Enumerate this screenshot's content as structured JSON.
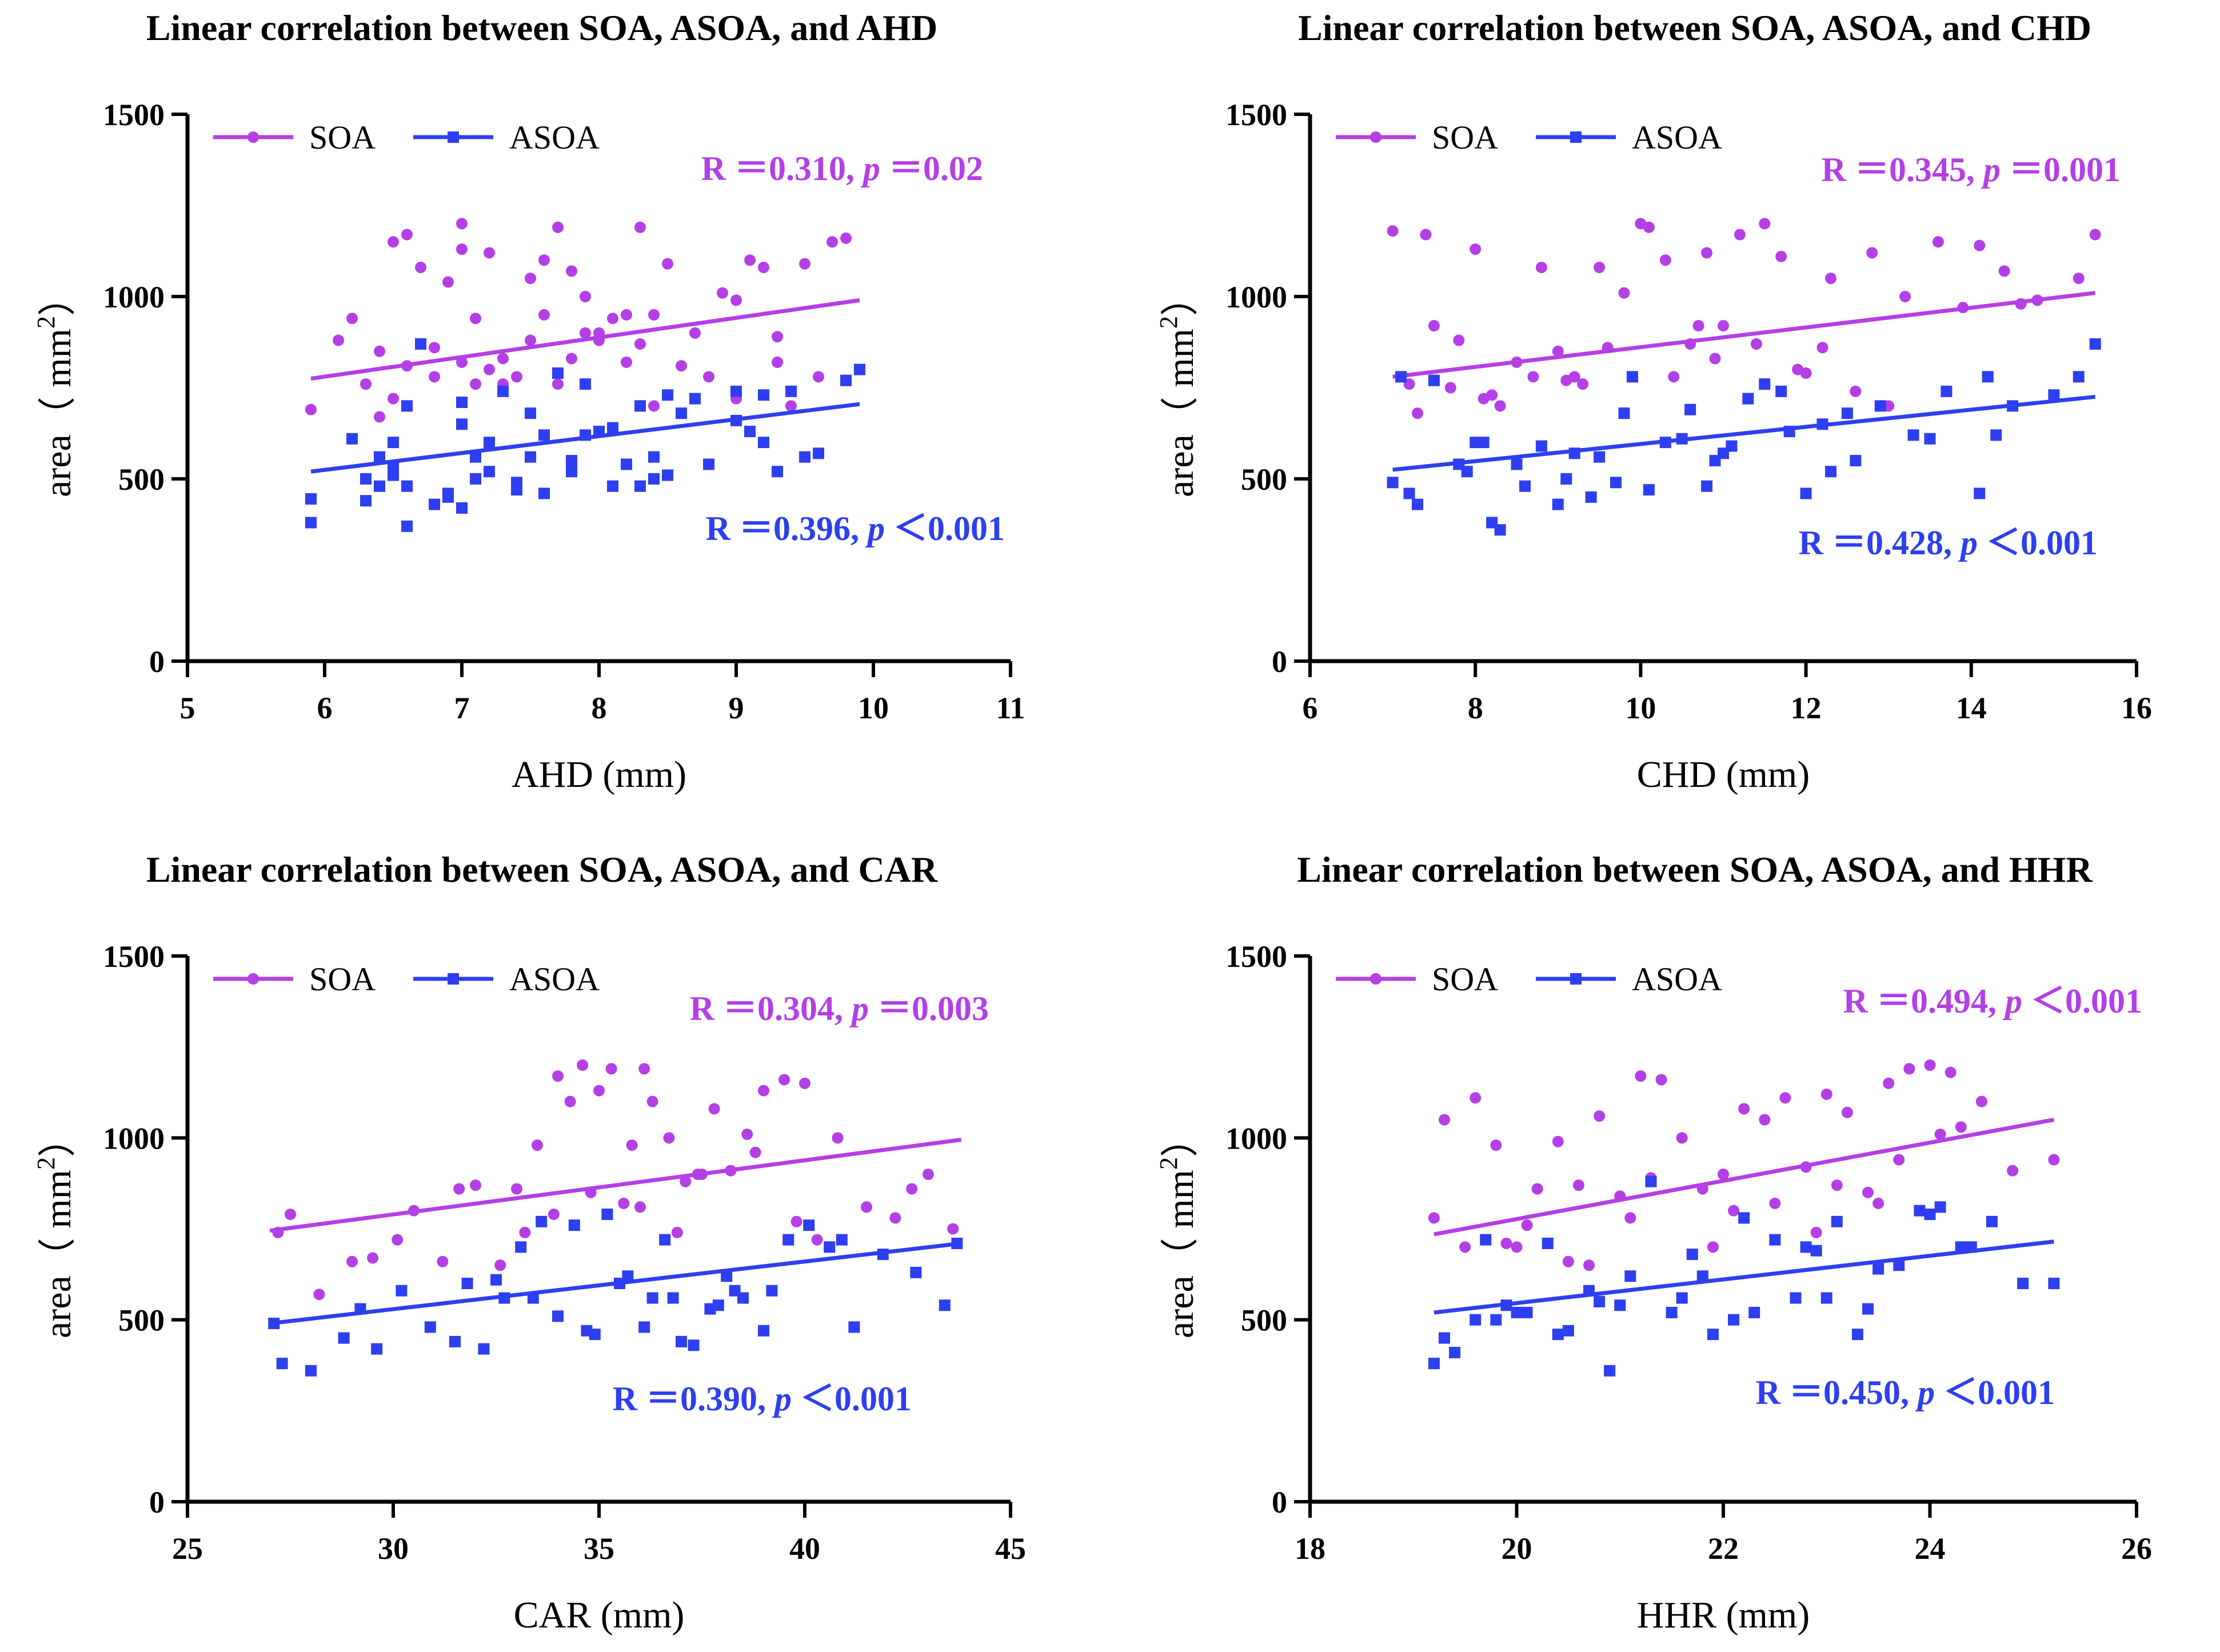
{
  "colors": {
    "soa": "#b43fe6",
    "asoa": "#2d3ff0",
    "axis": "#000000"
  },
  "chart_data": [
    {
      "type": "scatter",
      "title": "Linear correlation between SOA, ASOA, and AHD",
      "xlabel": "AHD (mm)",
      "ylabel": "area（ mm",
      "ylabel_sup": "2",
      "ylabel_close": "）",
      "xlim": [
        5,
        11
      ],
      "ylim": [
        0,
        1500
      ],
      "xticks": [
        "5",
        "6",
        "7",
        "8",
        "9",
        "10",
        "11"
      ],
      "yticks": [
        "0",
        "500",
        "1000",
        "1500"
      ],
      "legend": [
        "SOA",
        "ASOA"
      ],
      "series": [
        {
          "name": "SOA",
          "stat_r": "R ＝0.310,",
          "stat_p_sym": "p",
          "stat_p_val": "＝0.02",
          "fit": [
            [
              5.9,
              775
            ],
            [
              9.9,
              990
            ]
          ],
          "x": [
            5.9,
            6.1,
            6.3,
            6.4,
            6.5,
            6.6,
            6.7,
            6.8,
            6.9,
            7.0,
            7.0,
            7.1,
            7.2,
            7.3,
            7.4,
            7.5,
            7.6,
            7.7,
            7.8,
            7.9,
            8.0,
            8.1,
            8.2,
            8.3,
            8.4,
            8.5,
            8.7,
            8.9,
            9.0,
            9.1,
            9.2,
            9.3,
            9.5,
            9.7,
            9.8,
            6.5,
            6.8,
            7.0,
            7.3,
            7.6,
            7.8,
            8.0,
            8.3,
            8.6,
            9.0,
            9.4,
            6.2,
            6.6,
            7.1,
            7.5,
            7.9,
            8.2,
            8.8,
            9.3,
            6.4,
            7.2,
            7.7,
            8.4,
            9.6
          ],
          "y": [
            690,
            880,
            760,
            850,
            1150,
            1170,
            1080,
            860,
            1040,
            1200,
            1130,
            940,
            1120,
            830,
            780,
            1050,
            1100,
            1190,
            1070,
            1000,
            880,
            940,
            820,
            1190,
            950,
            1090,
            900,
            1010,
            990,
            1100,
            1080,
            820,
            1090,
            1150,
            1160,
            720,
            780,
            820,
            760,
            950,
            830,
            900,
            870,
            810,
            720,
            700,
            940,
            810,
            760,
            880,
            900,
            950,
            780,
            890,
            670,
            800,
            760,
            700,
            780
          ]
        },
        {
          "name": "ASOA",
          "stat_r": "R ＝0.396,",
          "stat_p_sym": "p",
          "stat_p_val": "＜0.001",
          "fit": [
            [
              5.9,
              520
            ],
            [
              9.9,
              705
            ]
          ],
          "x": [
            5.9,
            5.9,
            6.2,
            6.3,
            6.4,
            6.4,
            6.5,
            6.5,
            6.6,
            6.6,
            6.7,
            6.8,
            6.9,
            7.0,
            7.0,
            7.1,
            7.1,
            7.2,
            7.3,
            7.4,
            7.5,
            7.6,
            7.6,
            7.7,
            7.8,
            7.9,
            8.0,
            8.1,
            8.2,
            8.3,
            8.3,
            8.4,
            8.5,
            8.6,
            8.8,
            9.0,
            9.1,
            9.2,
            9.3,
            9.4,
            9.6,
            9.8,
            9.9,
            6.3,
            6.6,
            6.9,
            7.2,
            7.5,
            7.8,
            8.1,
            8.4,
            8.7,
            9.0,
            9.5,
            6.5,
            7.0,
            7.4,
            7.9,
            8.5,
            9.2
          ],
          "y": [
            445,
            380,
            610,
            440,
            480,
            560,
            530,
            600,
            370,
            480,
            870,
            430,
            460,
            710,
            420,
            560,
            500,
            520,
            740,
            490,
            560,
            460,
            620,
            790,
            550,
            760,
            630,
            480,
            540,
            700,
            480,
            500,
            730,
            680,
            540,
            740,
            630,
            600,
            520,
            740,
            570,
            770,
            800,
            500,
            700,
            450,
            600,
            680,
            520,
            640,
            560,
            720,
            660,
            560,
            510,
            650,
            470,
            620,
            510,
            730
          ]
        }
      ]
    },
    {
      "type": "scatter",
      "title": "Linear correlation between SOA, ASOA, and CHD",
      "xlabel": "CHD (mm)",
      "ylabel": "area（ mm",
      "ylabel_sup": "2",
      "ylabel_close": "）",
      "xlim": [
        6,
        16
      ],
      "ylim": [
        0,
        1500
      ],
      "xticks": [
        "6",
        "8",
        "10",
        "12",
        "14",
        "16"
      ],
      "yticks": [
        "0",
        "500",
        "1000",
        "1500"
      ],
      "legend": [
        "SOA",
        "ASOA"
      ],
      "series": [
        {
          "name": "SOA",
          "stat_r": "R ＝0.345,",
          "stat_p_sym": "p",
          "stat_p_val": "＝0.001",
          "fit": [
            [
              7.0,
              780
            ],
            [
              15.5,
              1010
            ]
          ],
          "x": [
            7.0,
            7.2,
            7.4,
            7.5,
            7.8,
            8.0,
            8.2,
            8.5,
            8.8,
            9.0,
            9.2,
            9.5,
            9.8,
            10.0,
            10.1,
            10.3,
            10.6,
            10.8,
            11.0,
            11.2,
            11.5,
            11.7,
            12.0,
            12.3,
            12.8,
            13.2,
            13.6,
            14.1,
            14.4,
            14.8,
            15.3,
            15.5,
            7.3,
            8.3,
            9.1,
            10.4,
            11.4,
            12.6,
            13.9,
            7.7,
            8.7,
            9.6,
            10.9,
            11.9,
            13.0,
            14.6,
            8.1,
            9.3,
            10.7,
            12.2
          ],
          "y": [
            1180,
            760,
            1170,
            920,
            880,
            1130,
            730,
            820,
            1080,
            850,
            780,
            1080,
            1010,
            1200,
            1190,
            1100,
            870,
            1120,
            920,
            1170,
            1200,
            1110,
            790,
            1050,
            1120,
            1000,
            1150,
            1140,
            1070,
            990,
            1050,
            1170,
            680,
            700,
            770,
            780,
            870,
            740,
            970,
            750,
            780,
            860,
            830,
            800,
            700,
            980,
            720,
            760,
            920,
            860
          ]
        },
        {
          "name": "ASOA",
          "stat_r": "R ＝0.428,",
          "stat_p_sym": "p",
          "stat_p_val": "＜0.001",
          "fit": [
            [
              7.0,
              525
            ],
            [
              15.5,
              725
            ]
          ],
          "x": [
            7.0,
            7.1,
            7.3,
            7.5,
            7.8,
            8.0,
            8.2,
            8.3,
            8.6,
            8.8,
            9.0,
            9.2,
            9.4,
            9.7,
            9.9,
            10.1,
            10.3,
            10.6,
            10.8,
            11.0,
            11.3,
            11.5,
            11.8,
            12.0,
            12.3,
            12.6,
            12.9,
            13.3,
            13.7,
            14.1,
            14.2,
            14.5,
            15.0,
            15.3,
            15.5,
            7.2,
            7.9,
            8.5,
            9.1,
            9.8,
            10.5,
            11.1,
            11.7,
            12.5,
            13.5,
            14.3,
            8.1,
            9.5,
            10.9,
            12.2
          ],
          "y": [
            490,
            780,
            430,
            770,
            540,
            600,
            380,
            360,
            480,
            590,
            430,
            570,
            450,
            490,
            780,
            470,
            600,
            690,
            480,
            570,
            720,
            760,
            630,
            460,
            520,
            550,
            700,
            620,
            740,
            460,
            780,
            700,
            730,
            780,
            870,
            460,
            520,
            540,
            500,
            680,
            610,
            590,
            740,
            680,
            610,
            620,
            600,
            560,
            550,
            650
          ]
        }
      ]
    },
    {
      "type": "scatter",
      "title": "Linear correlation between SOA, ASOA, and CAR",
      "xlabel": "CAR (mm)",
      "ylabel": "area（ mm",
      "ylabel_sup": "2",
      "ylabel_close": "）",
      "xlim": [
        25,
        45
      ],
      "ylim": [
        0,
        1500
      ],
      "xticks": [
        "25",
        "30",
        "35",
        "40",
        "45"
      ],
      "yticks": [
        "0",
        "500",
        "1000",
        "1500"
      ],
      "legend": [
        "SOA",
        "ASOA"
      ],
      "series": [
        {
          "name": "SOA",
          "stat_r": "R ＝0.304,",
          "stat_p_sym": "p",
          "stat_p_val": "＝0.003",
          "fit": [
            [
              27.0,
              745
            ],
            [
              43.8,
              995
            ]
          ],
          "x": [
            27.2,
            27.5,
            28.2,
            29.0,
            30.1,
            30.5,
            31.2,
            32.0,
            32.6,
            33.0,
            33.5,
            34.0,
            34.3,
            34.6,
            35.0,
            35.3,
            35.8,
            36.1,
            36.3,
            36.7,
            37.1,
            37.4,
            37.8,
            38.2,
            38.6,
            39.0,
            39.5,
            40.0,
            40.8,
            41.5,
            42.2,
            43.0,
            43.6,
            33.2,
            34.8,
            36.0,
            37.5,
            38.8,
            31.6,
            35.6,
            39.8,
            42.6,
            29.5,
            33.9,
            36.9,
            40.3
          ],
          "y": [
            740,
            790,
            570,
            660,
            720,
            800,
            660,
            870,
            650,
            860,
            980,
            1170,
            1100,
            1200,
            1130,
            1190,
            980,
            1190,
            1100,
            1000,
            880,
            900,
            1080,
            910,
            1010,
            1130,
            1160,
            1150,
            1000,
            810,
            780,
            900,
            750,
            740,
            850,
            810,
            900,
            960,
            860,
            820,
            770,
            860,
            670,
            790,
            740,
            720
          ]
        },
        {
          "name": "ASOA",
          "stat_r": "R ＝0.390,",
          "stat_p_sym": "p",
          "stat_p_val": "＜0.001",
          "fit": [
            [
              27.0,
              490
            ],
            [
              43.8,
              710
            ]
          ],
          "x": [
            27.1,
            27.3,
            28.0,
            28.8,
            29.6,
            30.2,
            30.9,
            31.5,
            32.2,
            32.7,
            33.1,
            33.6,
            34.0,
            34.4,
            34.9,
            35.2,
            35.7,
            36.1,
            36.6,
            37.0,
            37.3,
            37.7,
            38.1,
            38.5,
            39.0,
            39.6,
            40.1,
            40.6,
            41.2,
            41.9,
            42.7,
            43.4,
            43.7,
            33.4,
            35.5,
            36.8,
            38.3,
            29.2,
            31.8,
            34.7,
            37.9,
            40.9,
            32.5,
            36.3,
            39.2
          ],
          "y": [
            490,
            380,
            360,
            450,
            420,
            580,
            480,
            440,
            420,
            560,
            700,
            770,
            510,
            760,
            460,
            790,
            620,
            480,
            720,
            440,
            430,
            530,
            620,
            560,
            470,
            720,
            760,
            700,
            480,
            680,
            630,
            540,
            710,
            560,
            600,
            560,
            580,
            530,
            600,
            470,
            540,
            720,
            610,
            560,
            580
          ]
        }
      ]
    },
    {
      "type": "scatter",
      "title": "Linear correlation between SOA, ASOA, and HHR",
      "xlabel": "HHR (mm)",
      "ylabel": "area（ mm",
      "ylabel_sup": "2",
      "ylabel_close": "）",
      "xlim": [
        18,
        26
      ],
      "ylim": [
        0,
        1500
      ],
      "xticks": [
        "18",
        "20",
        "22",
        "24",
        "26"
      ],
      "yticks": [
        "0",
        "500",
        "1000",
        "1500"
      ],
      "legend": [
        "SOA",
        "ASOA"
      ],
      "series": [
        {
          "name": "SOA",
          "stat_r": "R ＝0.494,",
          "stat_p_sym": "p",
          "stat_p_val": "＜0.001",
          "fit": [
            [
              19.2,
              735
            ],
            [
              25.2,
              1050
            ]
          ],
          "x": [
            19.2,
            19.3,
            19.6,
            19.8,
            20.0,
            20.2,
            20.4,
            20.6,
            20.8,
            21.0,
            21.2,
            21.4,
            21.6,
            21.8,
            22.0,
            22.2,
            22.4,
            22.6,
            22.8,
            23.0,
            23.2,
            23.4,
            23.6,
            23.8,
            24.0,
            24.2,
            24.5,
            24.8,
            25.2,
            19.5,
            20.1,
            20.7,
            21.3,
            21.9,
            22.5,
            23.1,
            23.7,
            24.3,
            19.9,
            20.5,
            21.1,
            22.1,
            22.9,
            23.5,
            24.1
          ],
          "y": [
            780,
            1050,
            1110,
            980,
            700,
            860,
            990,
            870,
            1060,
            840,
            1170,
            1160,
            1000,
            860,
            900,
            1080,
            1050,
            1110,
            920,
            1120,
            1070,
            850,
            1150,
            1190,
            1200,
            1180,
            1100,
            910,
            940,
            700,
            760,
            650,
            890,
            700,
            820,
            870,
            940,
            1030,
            710,
            660,
            780,
            800,
            740,
            820,
            1010
          ]
        },
        {
          "name": "ASOA",
          "stat_r": "R ＝0.450,",
          "stat_p_sym": "p",
          "stat_p_val": "＜0.001",
          "fit": [
            [
              19.2,
              520
            ],
            [
              25.2,
              715
            ]
          ],
          "x": [
            19.2,
            19.3,
            19.4,
            19.6,
            19.7,
            19.9,
            20.1,
            20.3,
            20.5,
            20.7,
            20.9,
            21.1,
            21.3,
            21.5,
            21.7,
            21.9,
            22.1,
            22.3,
            22.5,
            22.7,
            22.9,
            23.1,
            23.3,
            23.5,
            23.7,
            23.9,
            24.1,
            24.3,
            24.6,
            24.9,
            25.2,
            19.8,
            20.4,
            21.0,
            21.6,
            22.2,
            22.8,
            23.4,
            24.0,
            20.0,
            20.8,
            21.8,
            23.0,
            24.4
          ],
          "y": [
            380,
            450,
            410,
            500,
            720,
            540,
            520,
            710,
            470,
            580,
            360,
            620,
            880,
            520,
            680,
            460,
            500,
            520,
            720,
            560,
            690,
            770,
            460,
            640,
            650,
            800,
            810,
            700,
            770,
            600,
            600,
            500,
            460,
            540,
            560,
            780,
            700,
            530,
            790,
            520,
            550,
            620,
            560,
            700
          ]
        }
      ]
    }
  ]
}
